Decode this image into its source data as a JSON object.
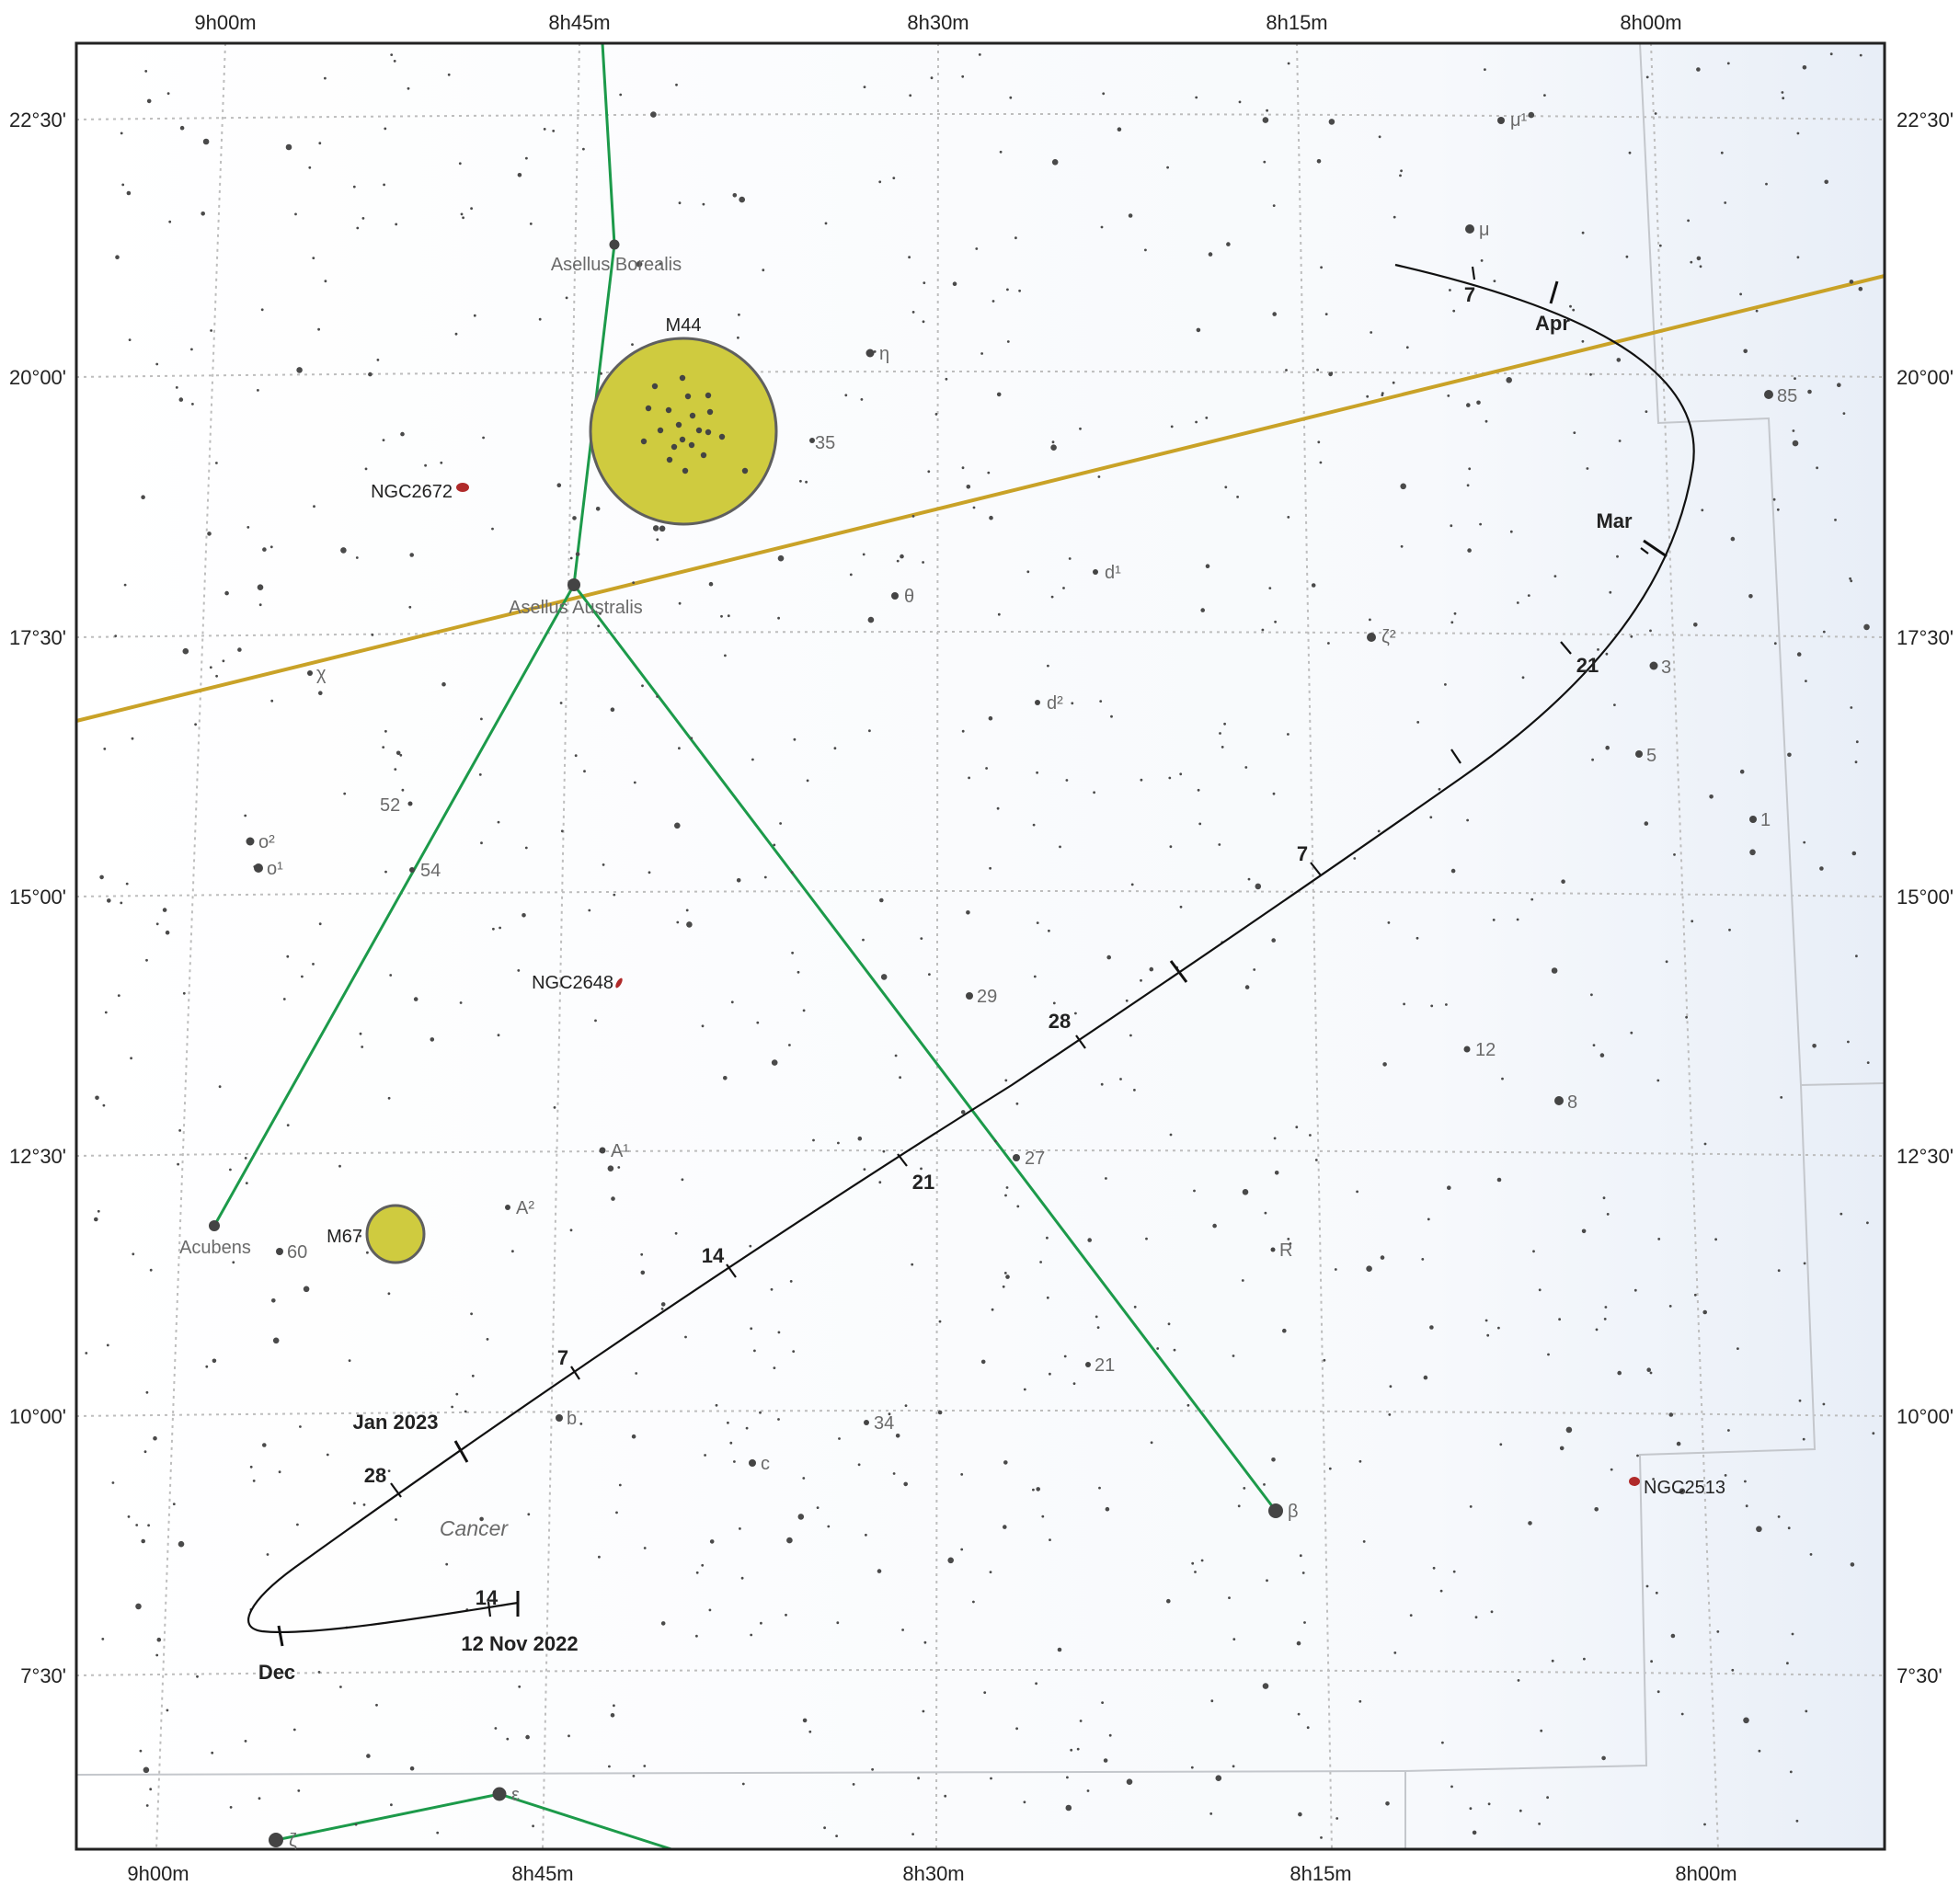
{
  "chart_data": {
    "type": "scatter",
    "constellation": "Cancer",
    "ra_labels_top": [
      "9h00m",
      "8h45m",
      "8h30m",
      "8h15m",
      "8h00m"
    ],
    "ra_labels_bottom": [
      "9h00m",
      "8h45m",
      "8h30m",
      "8h15m",
      "8h00m"
    ],
    "dec_labels_left": [
      "22°30'",
      "20°00'",
      "17°30'",
      "15°00'",
      "12°30'",
      "10°00'",
      "7°30'"
    ],
    "dec_labels_right": [
      "22°30'",
      "20°00'",
      "17°30'",
      "15°00'",
      "12°30'",
      "10°00'",
      "7°30'"
    ],
    "named_stars": [
      {
        "label": "Asellus Borealis"
      },
      {
        "label": "Asellus Australis"
      },
      {
        "label": "Acubens"
      },
      {
        "label": "β"
      },
      {
        "label": "ε"
      },
      {
        "label": "ζ"
      }
    ],
    "star_labels": [
      "μ¹",
      "μ",
      "η",
      "35",
      "θ",
      "d¹",
      "ζ²",
      "d²",
      "χ",
      "52",
      "54",
      "o²",
      "o¹",
      "85",
      "3",
      "5",
      "1",
      "12",
      "8",
      "29",
      "27",
      "A¹",
      "A²",
      "60",
      "R",
      "21",
      "34",
      "b",
      "c"
    ],
    "deep_sky": [
      {
        "name": "M44",
        "type": "open cluster"
      },
      {
        "name": "M67",
        "type": "open cluster"
      },
      {
        "name": "NGC2672",
        "type": "galaxy"
      },
      {
        "name": "NGC2648",
        "type": "galaxy"
      },
      {
        "name": "NGC2513",
        "type": "galaxy"
      }
    ],
    "track_labels": [
      "12 Nov 2022",
      "14",
      "Dec",
      "28",
      "Jan 2023",
      "7",
      "14",
      "21",
      "28",
      "7",
      "21",
      "Mar",
      "7",
      "Apr"
    ],
    "colors": {
      "figure_lines": "#1c9a4a",
      "ecliptic": "#c9a227",
      "cluster_fill": "#cfcb3f",
      "galaxy": "#b02a2a",
      "track": "#111111",
      "grid": "#bdbdbd"
    }
  }
}
